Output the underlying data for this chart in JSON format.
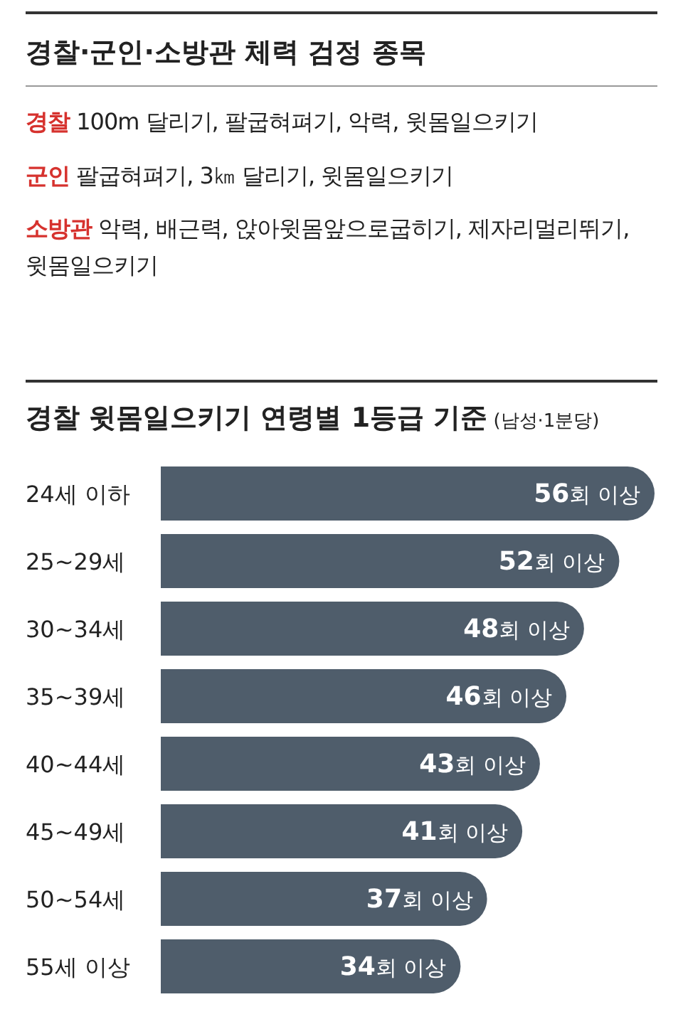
{
  "chart_data": [
    {
      "type": "other",
      "title": "경찰·군인·소방관 체력 검정 종목",
      "color": "#d6322e",
      "annotations": [
        "경찰 100m 달리기, 팔굽혀펴기, 악력, 윗몸일으키기",
        "군인 팔굽혀펴기, 3㎞ 달리기, 윗몸일으키기",
        "소방관 악력, 배근력, 앉아윗몸앞으로굽히기, 제자리멀리뛰기, 윗몸일으키기"
      ]
    },
    {
      "type": "bar",
      "orientation": "horizontal",
      "title": "경찰 윗몸일으키기 연령별 1등급 기준",
      "subtitle": "(남성·1분당)",
      "categories": [
        "24세 이하",
        "25~29세",
        "30~34세",
        "35~39세",
        "40~44세",
        "45~49세",
        "50~54세",
        "55세 이상"
      ],
      "values": [
        56,
        52,
        48,
        46,
        43,
        41,
        37,
        34
      ],
      "value_labels": [
        "56회 이상",
        "52회 이상",
        "48회 이상",
        "46회 이상",
        "43회 이상",
        "41회 이상",
        "37회 이상",
        "34회 이상"
      ],
      "color": "#4f5d6b"
    }
  ]
}
